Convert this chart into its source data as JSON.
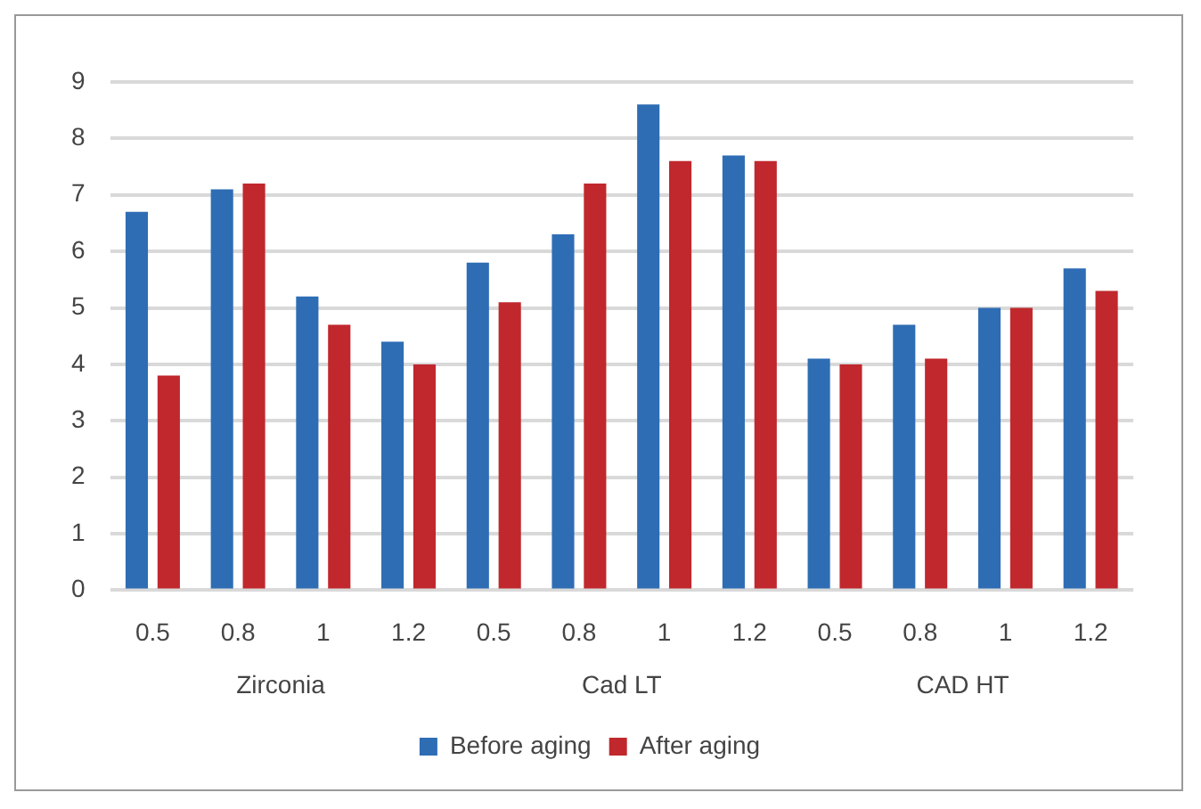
{
  "chart_data": {
    "type": "bar",
    "categories": [
      "0.5",
      "0.8",
      "1",
      "1.2",
      "0.5",
      "0.8",
      "1",
      "1.2",
      "0.5",
      "0.8",
      "1",
      "1.2"
    ],
    "series": [
      {
        "name": "Before aging",
        "color": "#2e6db4",
        "values": [
          6.7,
          7.1,
          5.2,
          4.4,
          5.8,
          6.3,
          8.6,
          7.7,
          4.1,
          4.7,
          5.0,
          5.7
        ]
      },
      {
        "name": "After aging",
        "color": "#c0282d",
        "values": [
          3.8,
          7.2,
          4.7,
          4.0,
          5.1,
          7.2,
          7.6,
          7.6,
          4.0,
          4.1,
          5.0,
          5.3
        ]
      }
    ],
    "annotations": [
      "Zirconia",
      "Cad LT",
      "CAD HT"
    ],
    "ylim": [
      0,
      9
    ],
    "yticks": [
      0,
      1,
      2,
      3,
      4,
      5,
      6,
      7,
      8,
      9
    ],
    "grid": "y",
    "legend": "bottom"
  }
}
